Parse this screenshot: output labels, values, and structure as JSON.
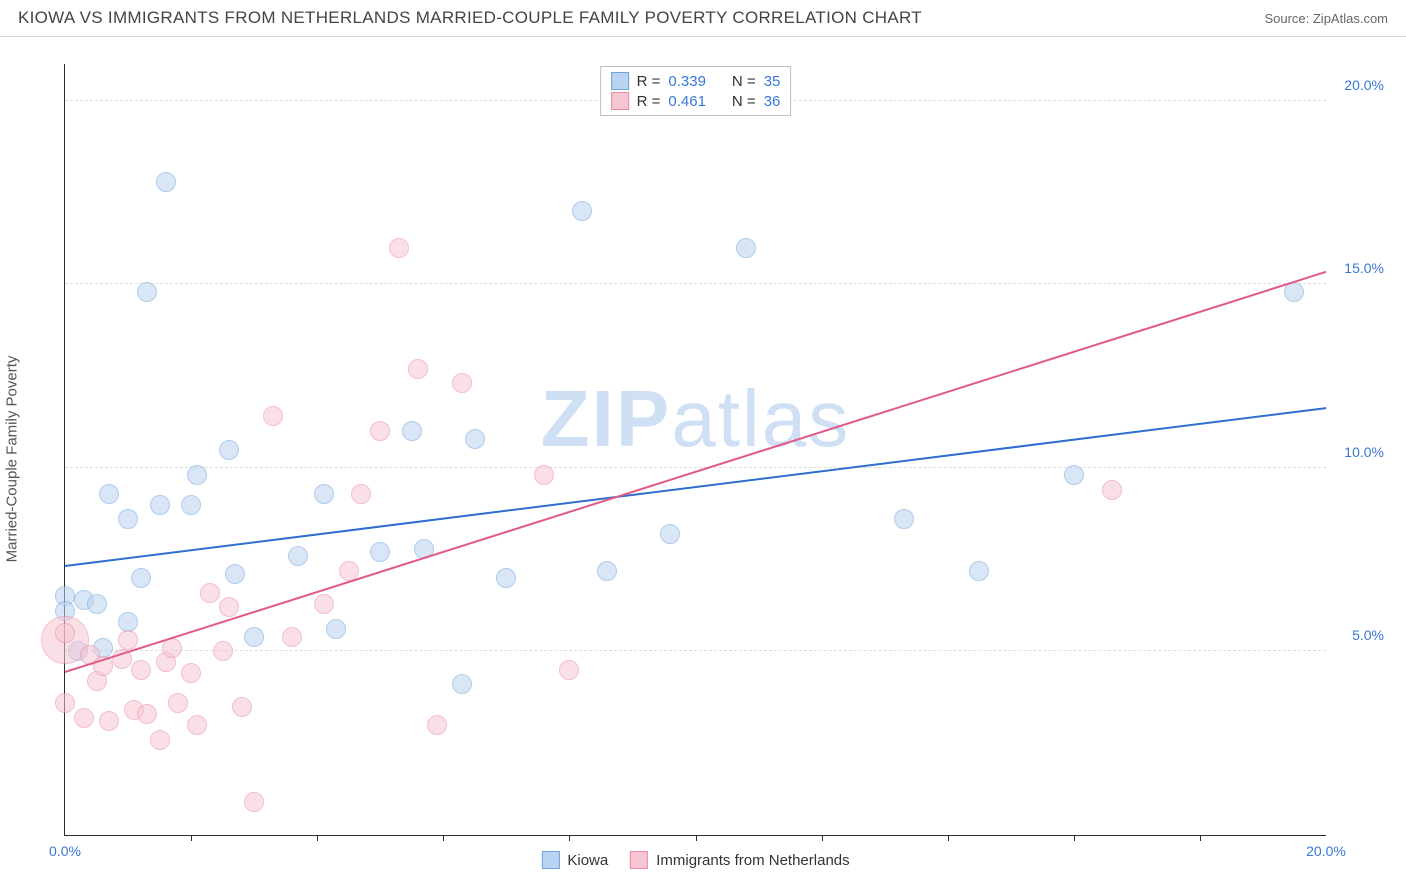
{
  "header": {
    "title": "KIOWA VS IMMIGRANTS FROM NETHERLANDS MARRIED-COUPLE FAMILY POVERTY CORRELATION CHART",
    "source": "Source: ZipAtlas.com"
  },
  "chart": {
    "type": "scatter",
    "y_label": "Married-Couple Family Poverty",
    "xlim": [
      0,
      20
    ],
    "ylim": [
      0,
      21
    ],
    "background_color": "#ffffff",
    "grid_color": "#dddddd",
    "axis_color": "#2b2b2b",
    "x_ticks": [
      {
        "pos": 0,
        "label": "0.0%",
        "color": "#3878d6"
      },
      {
        "pos": 20,
        "label": "20.0%",
        "color": "#3878d6"
      }
    ],
    "x_minor_ticks": [
      2,
      4,
      6,
      8,
      10,
      12,
      14,
      16,
      18
    ],
    "y_ticks": [
      {
        "pos": 5,
        "label": "5.0%",
        "color": "#3878d6"
      },
      {
        "pos": 10,
        "label": "10.0%",
        "color": "#3878d6"
      },
      {
        "pos": 15,
        "label": "15.0%",
        "color": "#3878d6"
      },
      {
        "pos": 20,
        "label": "20.0%",
        "color": "#3878d6"
      }
    ],
    "watermark": {
      "text1": "ZIP",
      "text2": "atlas",
      "color": "#cfe0f4"
    },
    "series": [
      {
        "name": "Kiowa",
        "fill": "#b9d3f0",
        "stroke": "#6fa3dd",
        "fill_opacity": 0.55,
        "marker_radius": 10,
        "trend": {
          "x1": 0,
          "y1": 7.3,
          "x2": 20,
          "y2": 11.6,
          "color": "#2f6fd0",
          "width": 2
        },
        "points": [
          [
            0.0,
            6.5
          ],
          [
            0.0,
            6.1
          ],
          [
            0.2,
            5.0
          ],
          [
            0.3,
            6.4
          ],
          [
            0.5,
            6.3
          ],
          [
            0.7,
            9.3
          ],
          [
            1.0,
            5.8
          ],
          [
            1.0,
            8.6
          ],
          [
            1.2,
            7.0
          ],
          [
            1.3,
            14.8
          ],
          [
            1.5,
            9.0
          ],
          [
            1.6,
            17.8
          ],
          [
            2.0,
            9.0
          ],
          [
            2.1,
            9.8
          ],
          [
            2.6,
            10.5
          ],
          [
            2.7,
            7.1
          ],
          [
            3.0,
            5.4
          ],
          [
            3.7,
            7.6
          ],
          [
            4.1,
            9.3
          ],
          [
            4.3,
            5.6
          ],
          [
            5.0,
            7.7
          ],
          [
            5.5,
            11.0
          ],
          [
            5.7,
            7.8
          ],
          [
            6.3,
            4.1
          ],
          [
            6.5,
            10.8
          ],
          [
            7.0,
            7.0
          ],
          [
            8.2,
            17.0
          ],
          [
            8.6,
            7.2
          ],
          [
            9.6,
            8.2
          ],
          [
            10.8,
            16.0
          ],
          [
            13.3,
            8.6
          ],
          [
            14.5,
            7.2
          ],
          [
            16.0,
            9.8
          ],
          [
            19.5,
            14.8
          ],
          [
            0.6,
            5.1
          ]
        ]
      },
      {
        "name": "Immigrants from Netherlands",
        "fill": "#f6c7d3",
        "stroke": "#e88aa6",
        "fill_opacity": 0.55,
        "marker_radius": 10,
        "trend": {
          "x1": 0,
          "y1": 4.4,
          "x2": 20,
          "y2": 15.3,
          "color": "#e05a8a",
          "width": 2
        },
        "points": [
          [
            0.0,
            5.5
          ],
          [
            0.0,
            3.6
          ],
          [
            0.3,
            3.2
          ],
          [
            0.4,
            4.9
          ],
          [
            0.5,
            4.2
          ],
          [
            0.6,
            4.6
          ],
          [
            0.7,
            3.1
          ],
          [
            0.9,
            4.8
          ],
          [
            1.0,
            5.3
          ],
          [
            1.1,
            3.4
          ],
          [
            1.2,
            4.5
          ],
          [
            1.3,
            3.3
          ],
          [
            1.5,
            2.6
          ],
          [
            1.6,
            4.7
          ],
          [
            1.7,
            5.1
          ],
          [
            1.8,
            3.6
          ],
          [
            2.0,
            4.4
          ],
          [
            2.1,
            3.0
          ],
          [
            2.3,
            6.6
          ],
          [
            2.5,
            5.0
          ],
          [
            2.6,
            6.2
          ],
          [
            2.8,
            3.5
          ],
          [
            3.0,
            0.9
          ],
          [
            3.3,
            11.4
          ],
          [
            3.6,
            5.4
          ],
          [
            4.1,
            6.3
          ],
          [
            4.5,
            7.2
          ],
          [
            4.7,
            9.3
          ],
          [
            5.0,
            11.0
          ],
          [
            5.3,
            16.0
          ],
          [
            5.6,
            12.7
          ],
          [
            5.9,
            3.0
          ],
          [
            6.3,
            12.3
          ],
          [
            7.6,
            9.8
          ],
          [
            8.0,
            4.5
          ],
          [
            16.6,
            9.4
          ]
        ],
        "large_point": {
          "x": 0,
          "y": 5.3,
          "r": 24
        }
      }
    ],
    "legend_top": {
      "rows": [
        {
          "sw_fill": "#b9d3f0",
          "sw_stroke": "#6fa3dd",
          "r_label": "R =",
          "r_value": "0.339",
          "n_label": "N =",
          "n_value": "35"
        },
        {
          "sw_fill": "#f6c7d3",
          "sw_stroke": "#e88aa6",
          "r_label": "R =",
          "r_value": "0.461",
          "n_label": "N =",
          "n_value": "36"
        }
      ]
    },
    "legend_bottom": {
      "items": [
        {
          "sw_fill": "#b9d3f0",
          "sw_stroke": "#6fa3dd",
          "label": "Kiowa"
        },
        {
          "sw_fill": "#f6c7d3",
          "sw_stroke": "#e88aa6",
          "label": "Immigrants from Netherlands"
        }
      ]
    }
  }
}
